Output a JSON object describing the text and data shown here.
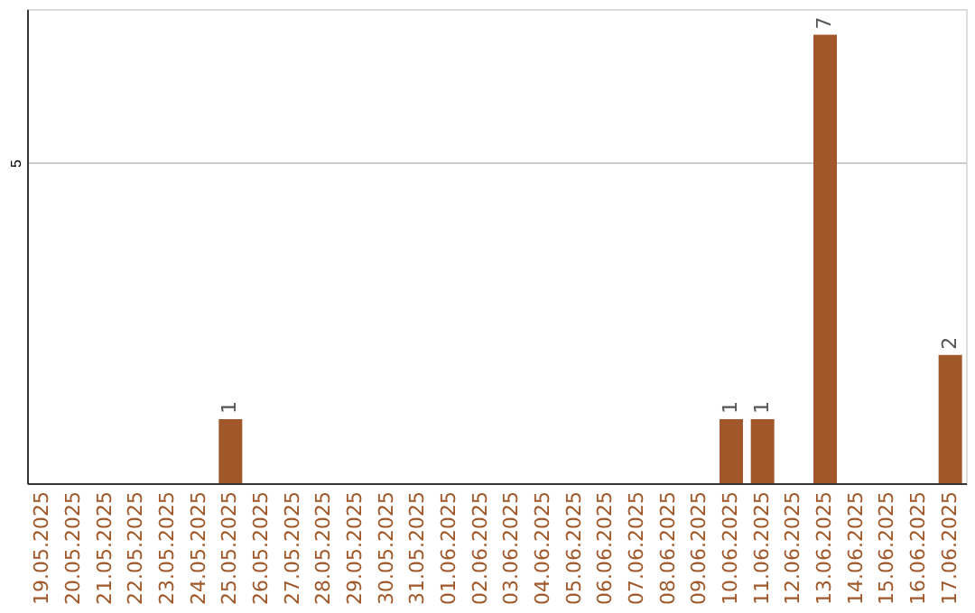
{
  "chart_data": {
    "type": "bar",
    "categories": [
      "19.05.2025",
      "20.05.2025",
      "21.05.2025",
      "22.05.2025",
      "23.05.2025",
      "24.05.2025",
      "25.05.2025",
      "26.05.2025",
      "27.05.2025",
      "28.05.2025",
      "29.05.2025",
      "30.05.2025",
      "31.05.2025",
      "01.06.2025",
      "02.06.2025",
      "03.06.2025",
      "04.06.2025",
      "05.06.2025",
      "06.06.2025",
      "07.06.2025",
      "08.06.2025",
      "09.06.2025",
      "10.06.2025",
      "11.06.2025",
      "12.06.2025",
      "13.06.2025",
      "14.06.2025",
      "15.06.2025",
      "16.06.2025",
      "17.06.2025"
    ],
    "values": [
      0,
      0,
      0,
      0,
      0,
      0,
      1,
      0,
      0,
      0,
      0,
      0,
      0,
      0,
      0,
      0,
      0,
      0,
      0,
      0,
      0,
      0,
      1,
      1,
      0,
      7,
      0,
      0,
      0,
      2
    ],
    "value_labels": [
      null,
      null,
      null,
      null,
      null,
      null,
      "1",
      null,
      null,
      null,
      null,
      null,
      null,
      null,
      null,
      null,
      null,
      null,
      null,
      null,
      null,
      null,
      "1",
      "1",
      null,
      "7",
      null,
      null,
      null,
      "2"
    ],
    "color": "#a0582a",
    "ylim": [
      0,
      7.4
    ],
    "yticks": [
      5
    ],
    "grid": "y"
  }
}
